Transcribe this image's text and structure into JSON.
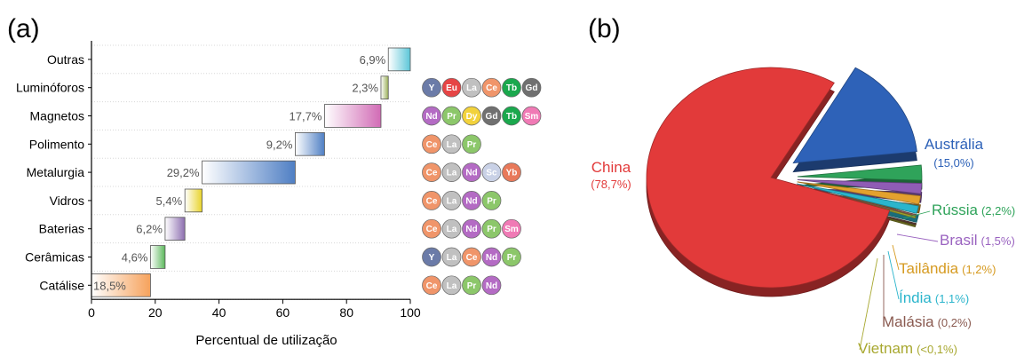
{
  "panels": {
    "a": "(a)",
    "b": "(b)"
  },
  "chart_data": [
    {
      "type": "bar",
      "subtype": "waterfall-horizontal",
      "xlabel": "Percentual de utilização",
      "xlim": [
        0,
        100
      ],
      "xticks": [
        "0",
        "20",
        "40",
        "60",
        "80",
        "100"
      ],
      "categories": [
        "Catálise",
        "Cerâmicas",
        "Baterias",
        "Vidros",
        "Metalurgia",
        "Polimento",
        "Magnetos",
        "Luminóforos",
        "Outras"
      ],
      "values": [
        18.5,
        4.6,
        6.2,
        5.4,
        29.2,
        9.2,
        17.7,
        2.3,
        6.9
      ],
      "value_labels": [
        "18,5%",
        "4,6%",
        "6,2%",
        "5,4%",
        "29,2%",
        "9,2%",
        "17,7%",
        "2,3%",
        "6,9%"
      ],
      "bar_colors": [
        "#f6a25c",
        "#5cb85c",
        "#8d6fb0",
        "#e8d32a",
        "#4f7fc4",
        "#4f7fc4",
        "#d16bb5",
        "#9bb05a",
        "#5bc6d8"
      ],
      "elements": [
        [
          "Ce",
          "La",
          "Pr",
          "Nd"
        ],
        [
          "Y",
          "La",
          "Ce",
          "Nd",
          "Pr"
        ],
        [
          "Ce",
          "La",
          "Nd",
          "Pr",
          "Sm"
        ],
        [
          "Ce",
          "La",
          "Nd",
          "Pr"
        ],
        [
          "Ce",
          "La",
          "Nd",
          "Sc",
          "Yb"
        ],
        [
          "Ce",
          "La",
          "Pr"
        ],
        [
          "Nd",
          "Pr",
          "Dy",
          "Gd",
          "Tb",
          "Sm"
        ],
        [],
        []
      ],
      "elements_luminoforos": [
        "Y",
        "Eu",
        "La",
        "Ce",
        "Tb",
        "Gd"
      ],
      "element_colors": {
        "Y": "#6b7ba8",
        "Eu": "#e64545",
        "La": "#c0c0c0",
        "Ce": "#f0956a",
        "Tb": "#1aa84d",
        "Gd": "#707070",
        "Nd": "#b46bc4",
        "Pr": "#8cc76a",
        "Dy": "#f2d23c",
        "Sm": "#f07ab5",
        "Sc": "#c9d1e6",
        "Yb": "#e8795a"
      }
    },
    {
      "type": "pie",
      "slices": [
        {
          "name": "China",
          "value_label": "(78,7%)",
          "value": 78.7,
          "color": "#e23a3a"
        },
        {
          "name": "Austrália",
          "value_label": "(15,0%)",
          "value": 15.0,
          "color": "#2e62b8"
        },
        {
          "name": "Rússia",
          "value_label": "(2,2%)",
          "value": 2.2,
          "color": "#2fa35a"
        },
        {
          "name": "Brasil",
          "value_label": "(1,5%)",
          "value": 1.5,
          "color": "#8f5cb5"
        },
        {
          "name": "Tailândia",
          "value_label": "(1,2%)",
          "value": 1.2,
          "color": "#e3a12e"
        },
        {
          "name": "Índia",
          "value_label": "(1,1%)",
          "value": 1.1,
          "color": "#2bb5cc"
        },
        {
          "name": "Malásia",
          "value_label": "(0,2%)",
          "value": 0.2,
          "color": "#8a5a50"
        },
        {
          "name": "Vietnam",
          "value_label": "(<0,1%)",
          "value": 0.1,
          "color": "#a8a830"
        }
      ],
      "label_colors": {
        "China": "#e23a3a",
        "Austrália": "#2e62b8",
        "Rússia": "#2fa35a",
        "Brasil": "#9a63c0",
        "Tailândia": "#d69a20",
        "Índia": "#2bb5cc",
        "Malásia": "#8a5a50",
        "Vietnam": "#a8a830"
      }
    }
  ]
}
